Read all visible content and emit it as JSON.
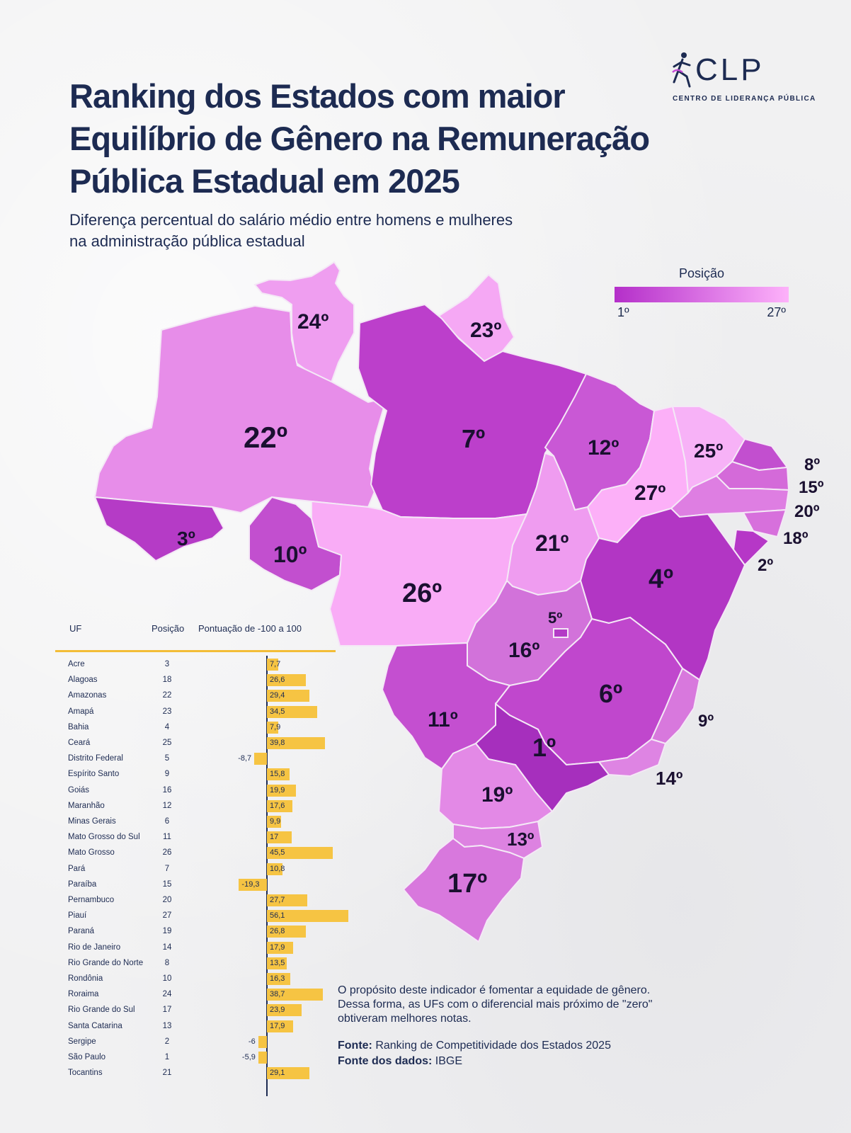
{
  "title_lines": [
    "Ranking dos Estados com maior",
    "Equilíbrio de Gênero na Remuneração",
    "Pública Estadual em 2025"
  ],
  "subtitle_lines": [
    "Diferença percentual do salário médio entre homens e mulheres",
    "na administração pública estadual"
  ],
  "logo": {
    "word": "CLP",
    "sub": "CENTRO DE LIDERANÇA PÚBLICA"
  },
  "legend": {
    "title": "Posição",
    "min_label": "1º",
    "max_label": "27º",
    "color_min": "#b42fc9",
    "color_max": "#fdb2fa"
  },
  "map_labels": {
    "RR": "24º",
    "AP": "23º",
    "AM": "22º",
    "PA": "7º",
    "MA": "12º",
    "CE": "25º",
    "RN": "8º",
    "PB": "15º",
    "PE": "20º",
    "AL": "18º",
    "SE": "2º",
    "PI": "27º",
    "AC": "3º",
    "RO": "10º",
    "TO": "21º",
    "BA": "4º",
    "MT": "26º",
    "DF": "5º",
    "GO": "16º",
    "MG": "6º",
    "ES": "9º",
    "MS": "11º",
    "SP": "1º",
    "RJ": "14º",
    "PR": "19º",
    "SC": "13º",
    "RS": "17º"
  },
  "table": {
    "headers": {
      "uf": "UF",
      "pos": "Posição",
      "score": "Pontuação de -100 a 100"
    },
    "score_range": [
      -100,
      100
    ]
  },
  "chart_data": {
    "type": "bar",
    "xlim": [
      -100,
      100
    ],
    "rows": [
      {
        "uf": "Acre",
        "pos": "3",
        "score": 7.7,
        "label": "7,7"
      },
      {
        "uf": "Alagoas",
        "pos": "18",
        "score": 26.6,
        "label": "26,6"
      },
      {
        "uf": "Amazonas",
        "pos": "22",
        "score": 29.4,
        "label": "29,4"
      },
      {
        "uf": "Amapá",
        "pos": "23",
        "score": 34.5,
        "label": "34,5"
      },
      {
        "uf": "Bahia",
        "pos": "4",
        "score": 7.9,
        "label": "7,9"
      },
      {
        "uf": "Ceará",
        "pos": "25",
        "score": 39.8,
        "label": "39,8"
      },
      {
        "uf": "Distrito Federal",
        "pos": "5",
        "score": -8.7,
        "label": "-8,7"
      },
      {
        "uf": "Espírito Santo",
        "pos": "9",
        "score": 15.8,
        "label": "15,8"
      },
      {
        "uf": "Goiás",
        "pos": "16",
        "score": 19.9,
        "label": "19,9"
      },
      {
        "uf": "Maranhão",
        "pos": "12",
        "score": 17.6,
        "label": "17,6"
      },
      {
        "uf": "Minas Gerais",
        "pos": "6",
        "score": 9.9,
        "label": "9,9"
      },
      {
        "uf": "Mato Grosso do Sul",
        "pos": "11",
        "score": 17,
        "label": "17"
      },
      {
        "uf": "Mato Grosso",
        "pos": "26",
        "score": 45.5,
        "label": "45,5"
      },
      {
        "uf": "Pará",
        "pos": "7",
        "score": 10.8,
        "label": "10,8"
      },
      {
        "uf": "Paraíba",
        "pos": "15",
        "score": -19.3,
        "label": "-19,3"
      },
      {
        "uf": "Pernambuco",
        "pos": "20",
        "score": 27.7,
        "label": "27,7"
      },
      {
        "uf": "Piauí",
        "pos": "27",
        "score": 56.1,
        "label": "56,1"
      },
      {
        "uf": "Paraná",
        "pos": "19",
        "score": 26.8,
        "label": "26,8"
      },
      {
        "uf": "Rio de Janeiro",
        "pos": "14",
        "score": 17.9,
        "label": "17,9"
      },
      {
        "uf": "Rio Grande do Norte",
        "pos": "8",
        "score": 13.5,
        "label": "13,5"
      },
      {
        "uf": "Rondônia",
        "pos": "10",
        "score": 16.3,
        "label": "16,3"
      },
      {
        "uf": "Roraima",
        "pos": "24",
        "score": 38.7,
        "label": "38,7"
      },
      {
        "uf": "Rio Grande do Sul",
        "pos": "17",
        "score": 23.9,
        "label": "23,9"
      },
      {
        "uf": "Santa Catarina",
        "pos": "13",
        "score": 17.9,
        "label": "17,9"
      },
      {
        "uf": "Sergipe",
        "pos": "2",
        "score": -6,
        "label": "-6"
      },
      {
        "uf": "São Paulo",
        "pos": "1",
        "score": -5.9,
        "label": "-5,9"
      },
      {
        "uf": "Tocantins",
        "pos": "21",
        "score": 29.1,
        "label": "29,1"
      }
    ]
  },
  "note_lines": [
    "O propósito deste indicador é fomentar a equidade de gênero.",
    "Dessa forma, as UFs com o diferencial mais próximo de \"zero\"",
    "obtiveram melhores notas."
  ],
  "source": {
    "label1": "Fonte:",
    "text1": " Ranking de Competitividade dos Estados 2025",
    "label2": "Fonte dos dados:",
    "text2": " IBGE"
  }
}
